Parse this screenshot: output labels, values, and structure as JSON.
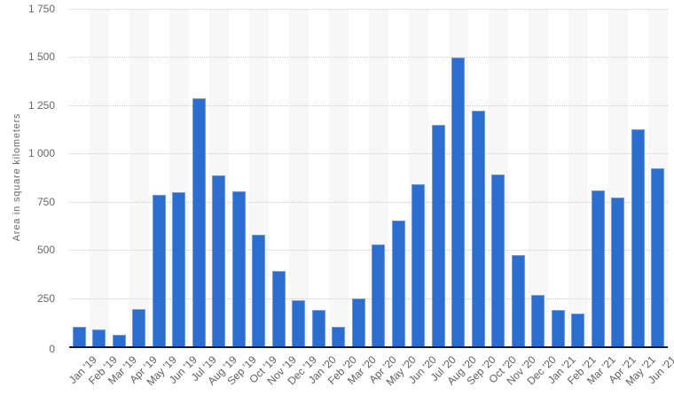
{
  "chart_data": {
    "type": "bar",
    "ylabel": "Area in square kilometers",
    "ylim": [
      0,
      1750
    ],
    "grid": true,
    "legend": false,
    "yticks": [
      {
        "value": 0,
        "label": "0"
      },
      {
        "value": 250,
        "label": "250"
      },
      {
        "value": 500,
        "label": "500"
      },
      {
        "value": 750,
        "label": "750"
      },
      {
        "value": 1000,
        "label": "1 000"
      },
      {
        "value": 1250,
        "label": "1 250"
      },
      {
        "value": 1500,
        "label": "1 500"
      },
      {
        "value": 1750,
        "label": "1 750"
      }
    ],
    "categories": [
      "Jan '19",
      "Feb '19",
      "Mar '19",
      "Apr '19",
      "May '19",
      "Jun '19",
      "Jul '19",
      "Aug '19",
      "Sep '19",
      "Oct '19",
      "Nov '19",
      "Dec '19",
      "Jan '20",
      "Feb '20",
      "Mar '20",
      "Apr '20",
      "May '20",
      "Jun '20",
      "Jul '20",
      "Aug '20",
      "Sep '20",
      "Oct '20",
      "Nov '20",
      "Dec '20",
      "Jan '21",
      "Feb '21",
      "Mar '21",
      "Apr '21",
      "May '21",
      "Jun '21"
    ],
    "values": [
      100,
      85,
      61,
      195,
      787,
      800,
      1287,
      885,
      802,
      578,
      389,
      240,
      188,
      99,
      250,
      529,
      652,
      839,
      1147,
      1499,
      1220,
      890,
      475,
      265,
      190,
      172,
      808,
      772,
      1125,
      922
    ],
    "colors": {
      "bar_fill": "#2c6dd0",
      "bar_edge": "#6f9ce0",
      "stripe": "#f7f7f7",
      "gridline": "#cccccc",
      "axis": "#1a1a1a",
      "tick_label": "#666666"
    }
  }
}
